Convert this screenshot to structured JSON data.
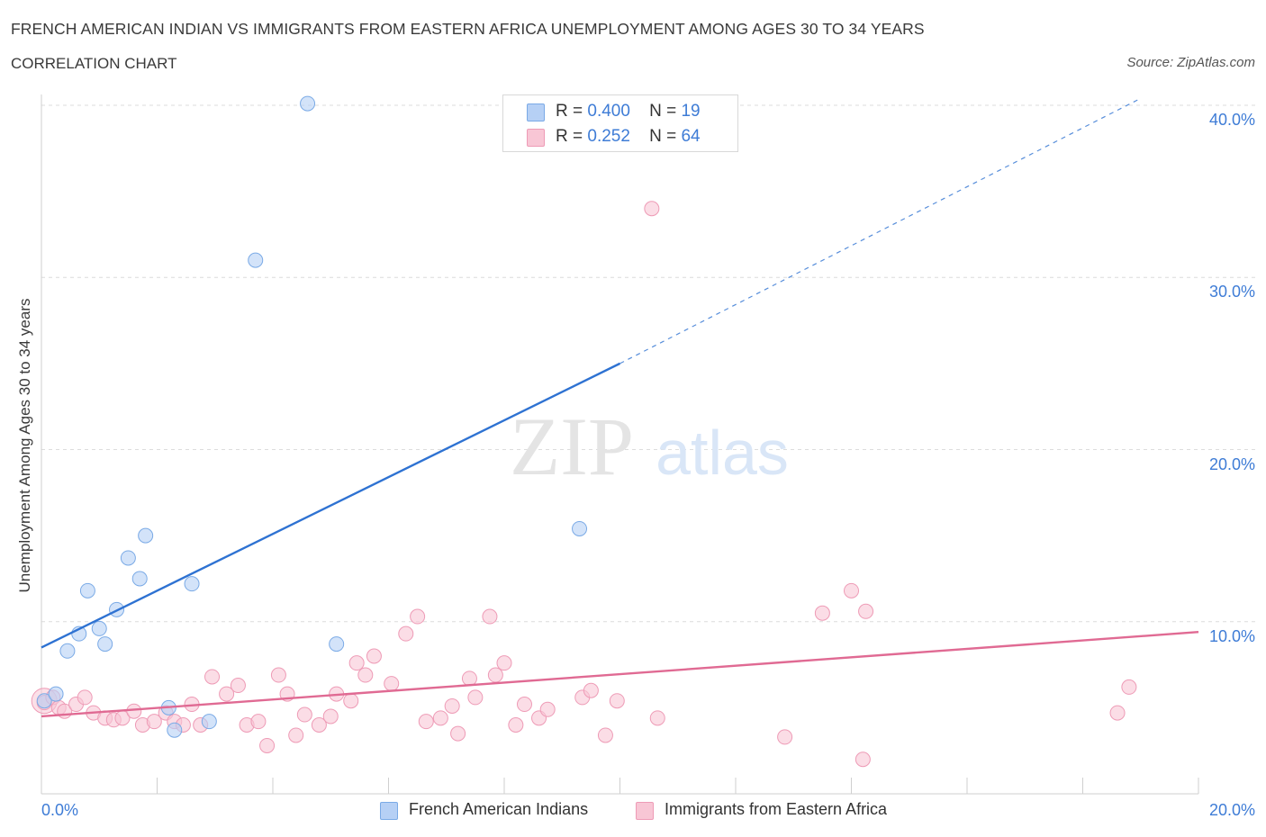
{
  "header": {
    "title": "FRENCH AMERICAN INDIAN VS IMMIGRANTS FROM EASTERN AFRICA UNEMPLOYMENT AMONG AGES 30 TO 34 YEARS",
    "subtitle": "CORRELATION CHART",
    "source": "Source: ZipAtlas.com"
  },
  "watermark": {
    "zip": "ZIP",
    "atlas": "atlas"
  },
  "legend_top": {
    "r_label": "R =",
    "n_label": "N =",
    "rows": [
      {
        "r": "0.400",
        "n": "19"
      },
      {
        "r": "0.252",
        "n": "64"
      }
    ]
  },
  "colors": {
    "blue_fill": "#b6d0f5",
    "blue_stroke": "#7aaae6",
    "blue_line": "#2e72d2",
    "pink_fill": "#f8c6d5",
    "pink_stroke": "#ee9bb6",
    "pink_line": "#e06a93",
    "tick_text": "#3e7cd6"
  },
  "chart_data": {
    "type": "scatter",
    "xlabel": "",
    "ylabel": "Unemployment Among Ages 30 to 34 years",
    "xlim": [
      0,
      20
    ],
    "ylim": [
      0,
      40
    ],
    "x_tick_labels": [
      "0.0%",
      "20.0%"
    ],
    "y_tick_labels": [
      "10.0%",
      "20.0%",
      "30.0%",
      "40.0%"
    ],
    "y_ticks": [
      10,
      20,
      30,
      40
    ],
    "grid": "horizontal dashed",
    "legend_position": "bottom",
    "series": [
      {
        "name": "French American Indians",
        "color": "#b6d0f5",
        "points": [
          [
            0.05,
            5.4
          ],
          [
            0.25,
            5.8
          ],
          [
            0.45,
            8.3
          ],
          [
            0.65,
            9.3
          ],
          [
            0.8,
            11.8
          ],
          [
            1.0,
            9.6
          ],
          [
            1.1,
            8.7
          ],
          [
            1.3,
            10.7
          ],
          [
            1.5,
            13.7
          ],
          [
            1.7,
            12.5
          ],
          [
            1.8,
            15.0
          ],
          [
            2.2,
            5.0
          ],
          [
            2.3,
            3.7
          ],
          [
            2.6,
            12.2
          ],
          [
            2.9,
            4.2
          ],
          [
            3.7,
            31.0
          ],
          [
            4.6,
            40.1
          ],
          [
            5.1,
            8.7
          ],
          [
            9.3,
            15.4
          ]
        ],
        "trend": {
          "x0": 0,
          "y0": 8.5,
          "x1": 10,
          "y1": 25.0,
          "dashed_to": [
            19.0,
            40.4
          ]
        }
      },
      {
        "name": "Immigrants from Eastern Africa",
        "color": "#f8c6d5",
        "points": [
          [
            0.05,
            5.3
          ],
          [
            0.2,
            5.6
          ],
          [
            0.3,
            5.0
          ],
          [
            0.4,
            4.8
          ],
          [
            0.6,
            5.2
          ],
          [
            0.75,
            5.6
          ],
          [
            0.9,
            4.7
          ],
          [
            1.1,
            4.4
          ],
          [
            1.25,
            4.3
          ],
          [
            1.4,
            4.4
          ],
          [
            1.6,
            4.8
          ],
          [
            1.75,
            4.0
          ],
          [
            1.95,
            4.2
          ],
          [
            2.15,
            4.7
          ],
          [
            2.3,
            4.2
          ],
          [
            2.45,
            4.0
          ],
          [
            2.6,
            5.2
          ],
          [
            2.75,
            4.0
          ],
          [
            2.95,
            6.8
          ],
          [
            3.2,
            5.8
          ],
          [
            3.4,
            6.3
          ],
          [
            3.55,
            4.0
          ],
          [
            3.75,
            4.2
          ],
          [
            3.9,
            2.8
          ],
          [
            4.1,
            6.9
          ],
          [
            4.25,
            5.8
          ],
          [
            4.4,
            3.4
          ],
          [
            4.55,
            4.6
          ],
          [
            4.8,
            4.0
          ],
          [
            5.0,
            4.5
          ],
          [
            5.1,
            5.8
          ],
          [
            5.35,
            5.4
          ],
          [
            5.45,
            7.6
          ],
          [
            5.6,
            6.9
          ],
          [
            5.75,
            8.0
          ],
          [
            6.05,
            6.4
          ],
          [
            6.3,
            9.3
          ],
          [
            6.5,
            10.3
          ],
          [
            6.65,
            4.2
          ],
          [
            6.9,
            4.4
          ],
          [
            7.1,
            5.1
          ],
          [
            7.2,
            3.5
          ],
          [
            7.4,
            6.7
          ],
          [
            7.5,
            5.6
          ],
          [
            7.75,
            10.3
          ],
          [
            7.85,
            6.9
          ],
          [
            8.0,
            7.6
          ],
          [
            8.2,
            4.0
          ],
          [
            8.35,
            5.2
          ],
          [
            8.6,
            4.4
          ],
          [
            8.75,
            4.9
          ],
          [
            9.35,
            5.6
          ],
          [
            9.5,
            6.0
          ],
          [
            9.75,
            3.4
          ],
          [
            9.95,
            5.4
          ],
          [
            10.55,
            34.0
          ],
          [
            10.65,
            4.4
          ],
          [
            12.85,
            3.3
          ],
          [
            13.5,
            10.5
          ],
          [
            14.0,
            11.8
          ],
          [
            14.2,
            2.0
          ],
          [
            14.25,
            10.6
          ],
          [
            18.6,
            4.7
          ],
          [
            18.8,
            6.2
          ]
        ],
        "trend": {
          "x0": 0,
          "y0": 4.5,
          "x1": 20,
          "y1": 9.4
        }
      }
    ]
  }
}
